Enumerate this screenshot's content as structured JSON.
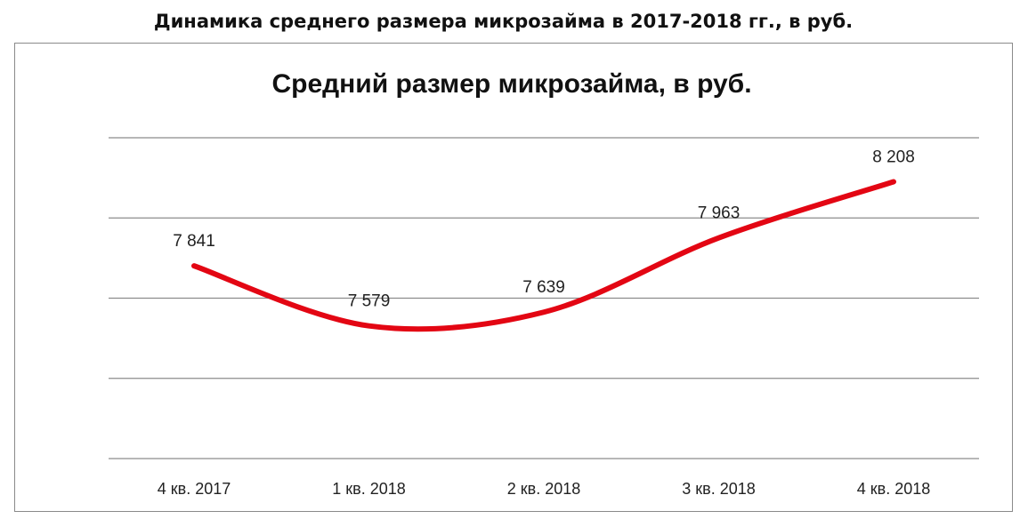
{
  "heading": "Динамика среднего размера микрозайма в 2017-2018 гг., в руб.",
  "chart_data": {
    "type": "line",
    "title": "Средний размер микрозайма, в руб.",
    "categories": [
      "4 кв. 2017",
      "1 кв. 2018",
      "2 кв. 2018",
      "3 кв. 2018",
      "4 кв. 2018"
    ],
    "values": [
      7841,
      7579,
      7639,
      7963,
      8208
    ],
    "value_labels": [
      "7 841",
      "7 579",
      "7 639",
      "7 963",
      "8 208"
    ],
    "line_color": "#e30613",
    "grid": true,
    "legend": "none",
    "ylim": [
      7000,
      8400
    ]
  }
}
